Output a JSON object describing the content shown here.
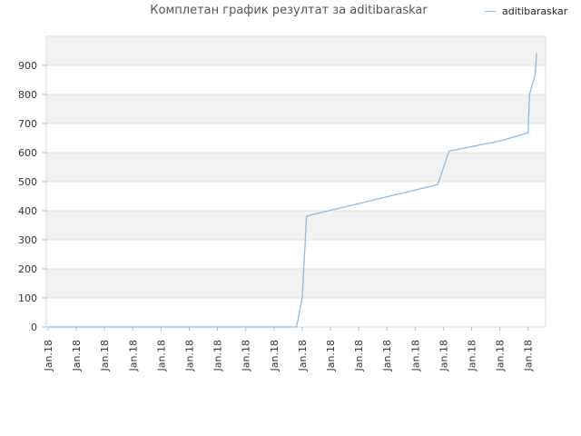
{
  "chart_data": {
    "type": "line",
    "title": "Комплетан график резултат за aditibaraskar",
    "xlabel": "",
    "ylabel": "",
    "ylim": [
      0,
      1000
    ],
    "yticks": [
      0,
      100,
      200,
      300,
      400,
      500,
      600,
      700,
      800,
      900
    ],
    "xtick_labels": [
      "Jan.18",
      "Jan.18",
      "Jan.18",
      "Jan.18",
      "Jan.18",
      "Jan.18",
      "Jan.18",
      "Jan.18",
      "Jan.18",
      "Jan.18",
      "Jan.18",
      "Jan.18",
      "Jan.18",
      "Jan.18",
      "Jan.18",
      "Jan.18",
      "Jan.18",
      "Jan.18"
    ],
    "grid": "horizontal alternating bands",
    "legend_position": "top-right",
    "series": [
      {
        "name": "aditibaraskar",
        "color": "#7fbfef",
        "x": [
          0,
          1,
          2,
          3,
          4,
          5,
          6,
          7,
          8,
          8.8,
          9.0,
          9.1,
          9.15,
          9.3,
          13.8,
          14.2,
          16.0,
          17.0,
          17.05,
          17.25,
          17.3
        ],
        "y": [
          0,
          0,
          0,
          0,
          0,
          0,
          0,
          0,
          0,
          0,
          100,
          280,
          380,
          385,
          490,
          605,
          640,
          668,
          800,
          868,
          940
        ]
      }
    ]
  }
}
